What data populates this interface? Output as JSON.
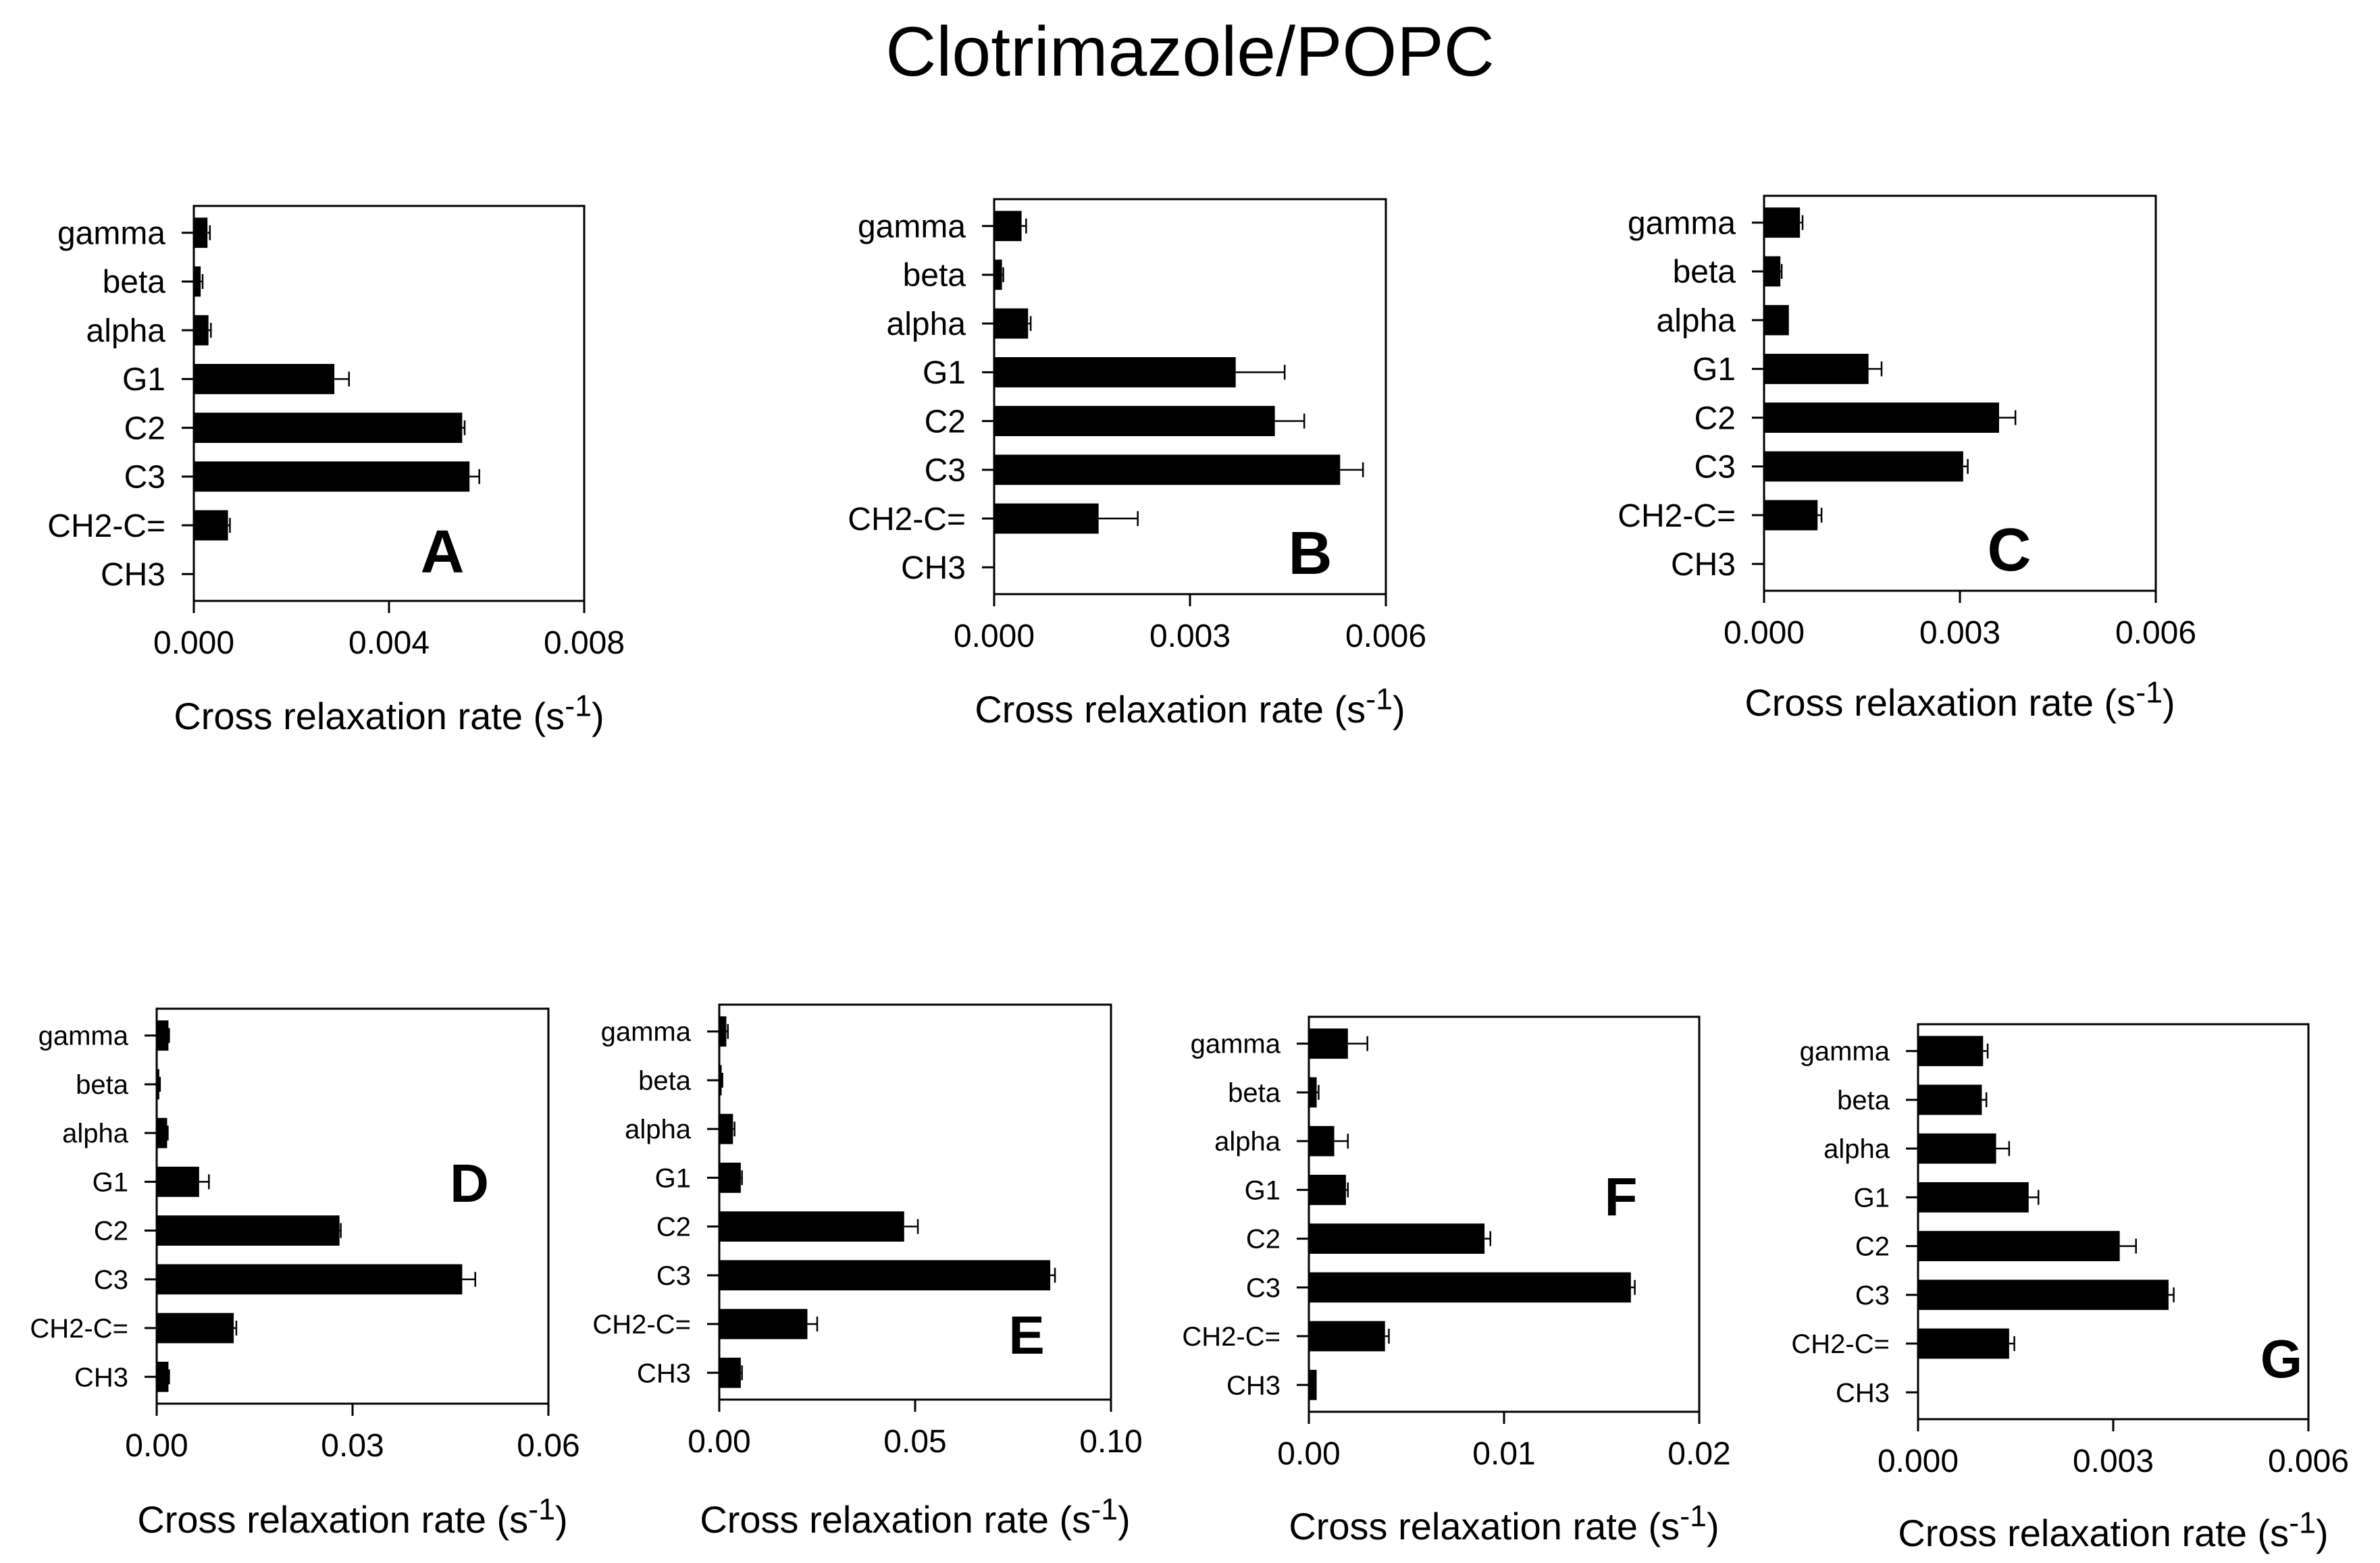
{
  "figure_title": "Clotrimazole/POPC",
  "colors": {
    "bar": "#000000",
    "axis": "#000000",
    "background": "#ffffff"
  },
  "chart_data": [
    {
      "type": "bar",
      "orientation": "horizontal",
      "panel_label": "A",
      "categories": [
        "gamma",
        "beta",
        "alpha",
        "G1",
        "C2",
        "C3",
        "CH2-C=",
        "CH3"
      ],
      "values": [
        0.00028,
        0.00014,
        0.0003,
        0.00288,
        0.0055,
        0.00565,
        0.0007,
        0
      ],
      "errors": [
        5e-05,
        4e-05,
        5e-05,
        0.0003,
        5e-05,
        0.0002,
        4e-05,
        0
      ],
      "xlim": [
        0,
        0.008
      ],
      "ticks": [
        "0.000",
        "0.004",
        "0.008"
      ],
      "xlabel": "Cross relaxation rate (s-1)",
      "xlabel_main": "Cross relaxation rate (s",
      "xlabel_sup": "-1",
      "xlabel_close": ")"
    },
    {
      "type": "bar",
      "orientation": "horizontal",
      "panel_label": "B",
      "categories": [
        "gamma",
        "beta",
        "alpha",
        "G1",
        "C2",
        "C3",
        "CH2-C=",
        "CH3"
      ],
      "values": [
        0.00042,
        0.00012,
        0.00052,
        0.0037,
        0.0043,
        0.0053,
        0.0016,
        0
      ],
      "errors": [
        7e-05,
        2e-05,
        4e-05,
        0.00075,
        0.00045,
        0.00035,
        0.0006,
        0
      ],
      "xlim": [
        0,
        0.006
      ],
      "ticks": [
        "0.000",
        "0.003",
        "0.006"
      ],
      "xlabel": "Cross relaxation rate (s-1)",
      "xlabel_main": "Cross relaxation rate (s",
      "xlabel_sup": "-1",
      "xlabel_close": ")"
    },
    {
      "type": "bar",
      "orientation": "horizontal",
      "panel_label": "C",
      "categories": [
        "gamma",
        "beta",
        "alpha",
        "G1",
        "C2",
        "C3",
        "CH2-C=",
        "CH3"
      ],
      "values": [
        0.00055,
        0.00025,
        0.00038,
        0.0016,
        0.0036,
        0.00305,
        0.00082,
        0
      ],
      "errors": [
        4e-05,
        2e-05,
        0,
        0.0002,
        0.00025,
        7e-05,
        6e-05,
        0
      ],
      "xlim": [
        0,
        0.006
      ],
      "ticks": [
        "0.000",
        "0.003",
        "0.006"
      ],
      "xlabel": "Cross relaxation rate (s-1)",
      "xlabel_main": "Cross relaxation rate (s",
      "xlabel_sup": "-1",
      "xlabel_close": ")"
    },
    {
      "type": "bar",
      "orientation": "horizontal",
      "panel_label": "D",
      "categories": [
        "gamma",
        "beta",
        "alpha",
        "G1",
        "C2",
        "C3",
        "CH2-C=",
        "CH3"
      ],
      "values": [
        0.0018,
        0.0004,
        0.0016,
        0.0065,
        0.028,
        0.0468,
        0.0118,
        0.0018
      ],
      "errors": [
        0.0001,
        0.0001,
        0.0001,
        0.0015,
        0.0002,
        0.002,
        0.0004,
        0.0001
      ],
      "xlim": [
        0,
        0.06
      ],
      "ticks": [
        "0.00",
        "0.03",
        "0.06"
      ],
      "xlabel": "Cross relaxation rate (s-1)",
      "xlabel_main": "Cross relaxation rate (s",
      "xlabel_sup": "-1",
      "xlabel_close": ")"
    },
    {
      "type": "bar",
      "orientation": "horizontal",
      "panel_label": "E",
      "categories": [
        "gamma",
        "beta",
        "alpha",
        "G1",
        "C2",
        "C3",
        "CH2-C=",
        "CH3"
      ],
      "values": [
        0.0018,
        0.0006,
        0.0035,
        0.0055,
        0.0472,
        0.0845,
        0.0225,
        0.0055
      ],
      "errors": [
        0.0004,
        0.0002,
        0.0004,
        0.0003,
        0.0035,
        0.0012,
        0.0025,
        0.0003
      ],
      "xlim": [
        0,
        0.1
      ],
      "ticks": [
        "0.00",
        "0.05",
        "0.10"
      ],
      "xlabel": "Cross relaxation rate (s-1)",
      "xlabel_main": "Cross relaxation rate (s",
      "xlabel_sup": "-1",
      "xlabel_close": ")"
    },
    {
      "type": "bar",
      "orientation": "horizontal",
      "panel_label": "F",
      "categories": [
        "gamma",
        "beta",
        "alpha",
        "G1",
        "C2",
        "C3",
        "CH2-C=",
        "CH3"
      ],
      "values": [
        0.002,
        0.0004,
        0.0013,
        0.0019,
        0.009,
        0.0165,
        0.0039,
        0.0004
      ],
      "errors": [
        0.001,
        0.0001,
        0.0007,
        0.0001,
        0.0003,
        0.0002,
        0.0002,
        0
      ],
      "xlim": [
        0,
        0.02
      ],
      "ticks": [
        "0.00",
        "0.01",
        "0.02"
      ],
      "xlabel": "Cross relaxation rate (s-1)",
      "xlabel_main": "Cross relaxation rate (s",
      "xlabel_sup": "-1",
      "xlabel_close": ")"
    },
    {
      "type": "bar",
      "orientation": "horizontal",
      "panel_label": "G",
      "categories": [
        "gamma",
        "beta",
        "alpha",
        "G1",
        "C2",
        "C3",
        "CH2-C=",
        "CH3"
      ],
      "values": [
        0.001,
        0.00098,
        0.0012,
        0.0017,
        0.0031,
        0.00385,
        0.0014,
        0
      ],
      "errors": [
        7e-05,
        7e-05,
        0.0002,
        0.00015,
        0.00025,
        8e-05,
        8e-05,
        0
      ],
      "xlim": [
        0,
        0.006
      ],
      "ticks": [
        "0.000",
        "0.003",
        "0.006"
      ],
      "xlabel": "Cross relaxation rate (s-1)",
      "xlabel_main": "Cross relaxation rate (s",
      "xlabel_sup": "-1",
      "xlabel_close": ")"
    }
  ]
}
